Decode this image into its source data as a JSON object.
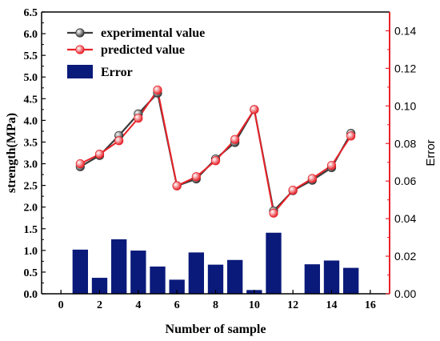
{
  "chart_data": {
    "type": "line",
    "xlabel": "Number of sample",
    "ylabel": "strength(MPa)",
    "y2label": "Error",
    "xlim": [
      -1,
      17
    ],
    "ylim": [
      0,
      6.5
    ],
    "y2lim": [
      0,
      0.15
    ],
    "xticks": [
      0,
      2,
      4,
      6,
      8,
      10,
      12,
      14,
      16
    ],
    "yticks": [
      0.0,
      0.5,
      1.0,
      1.5,
      2.0,
      2.5,
      3.0,
      3.5,
      4.0,
      4.5,
      5.0,
      5.5,
      6.0,
      6.5
    ],
    "y2ticks": [
      0.0,
      0.02,
      0.04,
      0.06,
      0.08,
      0.1,
      0.12,
      0.14
    ],
    "x": [
      1,
      2,
      3,
      4,
      5,
      6,
      7,
      8,
      9,
      10,
      11,
      12,
      13,
      14,
      15
    ],
    "series": [
      {
        "name": "experimental value",
        "axis": "left",
        "color": "#3a3a3a",
        "values": [
          2.93,
          3.19,
          3.65,
          4.15,
          4.63,
          2.49,
          2.65,
          3.11,
          3.49,
          4.25,
          1.91,
          2.38,
          2.62,
          2.91,
          3.7
        ]
      },
      {
        "name": "predicted value",
        "axis": "left",
        "color": "#e8232a",
        "values": [
          3.0,
          3.22,
          3.53,
          4.05,
          4.7,
          2.49,
          2.7,
          3.07,
          3.56,
          4.25,
          1.86,
          2.39,
          2.66,
          2.96,
          3.64
        ]
      },
      {
        "name": "Error",
        "axis": "right",
        "type": "bar",
        "color": "#0a1a7a",
        "values": [
          0.0235,
          0.0085,
          0.029,
          0.023,
          0.0145,
          0.0075,
          0.022,
          0.0155,
          0.018,
          0.002,
          0.0325,
          0.0,
          0.0157,
          0.0177,
          0.0138
        ]
      }
    ],
    "legend_position": "top-left",
    "grid": false
  }
}
